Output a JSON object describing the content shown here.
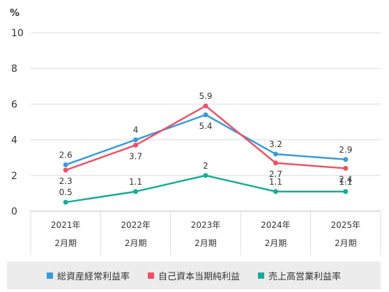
{
  "chart_data": {
    "type": "line",
    "unit_label": "%",
    "ylim": [
      0,
      10
    ],
    "yticks": [
      "0",
      "2",
      "4",
      "6",
      "8",
      "10"
    ],
    "categories": [
      [
        "2021年",
        "2月期"
      ],
      [
        "2022年",
        "2月期"
      ],
      [
        "2023年",
        "2月期"
      ],
      [
        "2024年",
        "2月期"
      ],
      [
        "2025年",
        "2月期"
      ]
    ],
    "grid": "horizontal",
    "legend_position": "bottom",
    "series": [
      {
        "name": "総資産経常利益率",
        "color": "#3a9ad9",
        "values": [
          2.6,
          4,
          5.4,
          3.2,
          2.9
        ]
      },
      {
        "name": "自己資本当期純利益",
        "color": "#ee5066",
        "values": [
          2.3,
          3.7,
          5.9,
          2.7,
          2.4
        ]
      },
      {
        "name": "売上高営業利益率",
        "color": "#17ab96",
        "values": [
          0.5,
          1.1,
          2,
          1.1,
          1.1
        ]
      }
    ]
  }
}
